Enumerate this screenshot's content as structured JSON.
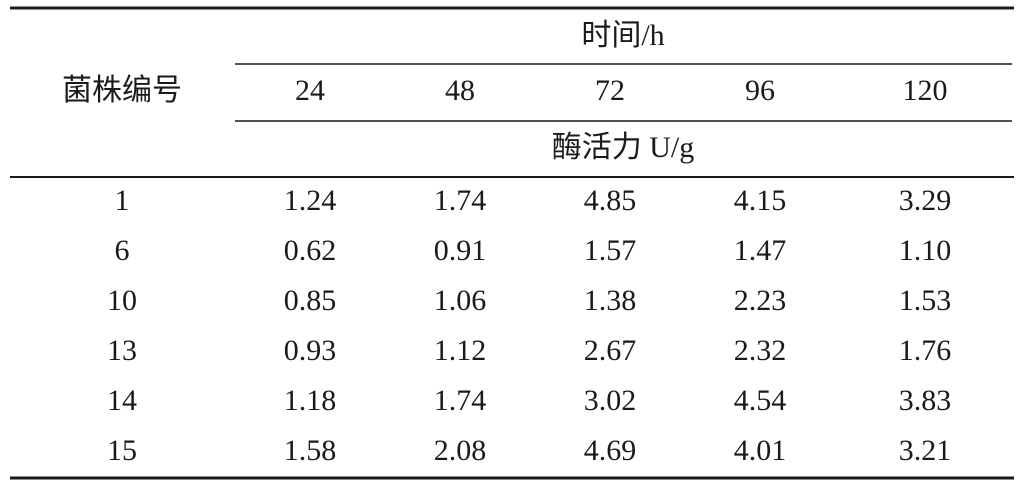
{
  "table": {
    "stub_header": "菌株编号",
    "group_header": "时间/h",
    "columns": [
      "24",
      "48",
      "72",
      "96",
      "120"
    ],
    "unit_header": "酶活力 U/g",
    "rows": [
      [
        "1",
        "1.24",
        "1.74",
        "4.85",
        "4.15",
        "3.29"
      ],
      [
        "6",
        "0.62",
        "0.91",
        "1.57",
        "1.47",
        "1.10"
      ],
      [
        "10",
        "0.85",
        "1.06",
        "1.38",
        "2.23",
        "1.53"
      ],
      [
        "13",
        "0.93",
        "1.12",
        "2.67",
        "2.32",
        "1.76"
      ],
      [
        "14",
        "1.18",
        "1.74",
        "3.02",
        "4.54",
        "3.83"
      ],
      [
        "15",
        "1.58",
        "2.08",
        "4.69",
        "4.01",
        "3.21"
      ]
    ]
  }
}
